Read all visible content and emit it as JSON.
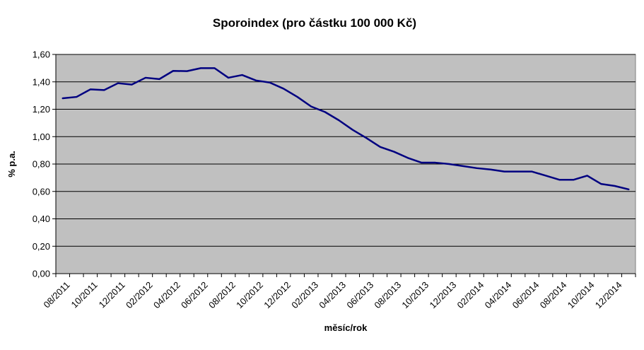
{
  "chart_data": {
    "type": "line",
    "title": "Sporoindex (pro částku 100 000 Kč)",
    "xlabel": "měsíc/rok",
    "ylabel": "% p.a.",
    "ylim": [
      0,
      1.6
    ],
    "yticks": [
      "0,00",
      "0,20",
      "0,40",
      "0,60",
      "0,80",
      "1,00",
      "1,20",
      "1,40",
      "1,60"
    ],
    "ytick_values": [
      0,
      0.2,
      0.4,
      0.6,
      0.8,
      1.0,
      1.2,
      1.4,
      1.6
    ],
    "categories": [
      "08/2011",
      "09/2011",
      "10/2011",
      "11/2011",
      "12/2011",
      "01/2012",
      "02/2012",
      "03/2012",
      "04/2012",
      "05/2012",
      "06/2012",
      "07/2012",
      "08/2012",
      "09/2012",
      "10/2012",
      "11/2012",
      "12/2012",
      "01/2013",
      "02/2013",
      "03/2013",
      "04/2013",
      "05/2013",
      "06/2013",
      "07/2013",
      "08/2013",
      "09/2013",
      "10/2013",
      "11/2013",
      "12/2013",
      "01/2014",
      "02/2014",
      "03/2014",
      "04/2014",
      "05/2014",
      "06/2014",
      "07/2014",
      "08/2014",
      "09/2014",
      "10/2014",
      "11/2014",
      "12/2014",
      "01/2015"
    ],
    "xtick_labels": [
      "08/2011",
      "10/2011",
      "12/2011",
      "02/2012",
      "04/2012",
      "06/2012",
      "08/2012",
      "10/2012",
      "12/2012",
      "02/2013",
      "04/2013",
      "06/2013",
      "08/2013",
      "10/2013",
      "12/2013",
      "02/2014",
      "04/2014",
      "06/2014",
      "08/2014",
      "10/2014",
      "12/2014"
    ],
    "series": [
      {
        "values": [
          1.28,
          1.29,
          1.345,
          1.34,
          1.39,
          1.38,
          1.43,
          1.42,
          1.48,
          1.478,
          1.5,
          1.5,
          1.43,
          1.45,
          1.41,
          1.395,
          1.35,
          1.29,
          1.22,
          1.18,
          1.12,
          1.05,
          0.99,
          0.925,
          0.89,
          0.845,
          0.81,
          0.81,
          0.8,
          0.785,
          0.77,
          0.76,
          0.745,
          0.745,
          0.745,
          0.715,
          0.685,
          0.685,
          0.715,
          0.655,
          0.64,
          0.615
        ],
        "color": "#000080"
      }
    ],
    "grid": true,
    "plot_background": "#c0c0c0",
    "gridline_color": "#000000",
    "legend": "none"
  }
}
